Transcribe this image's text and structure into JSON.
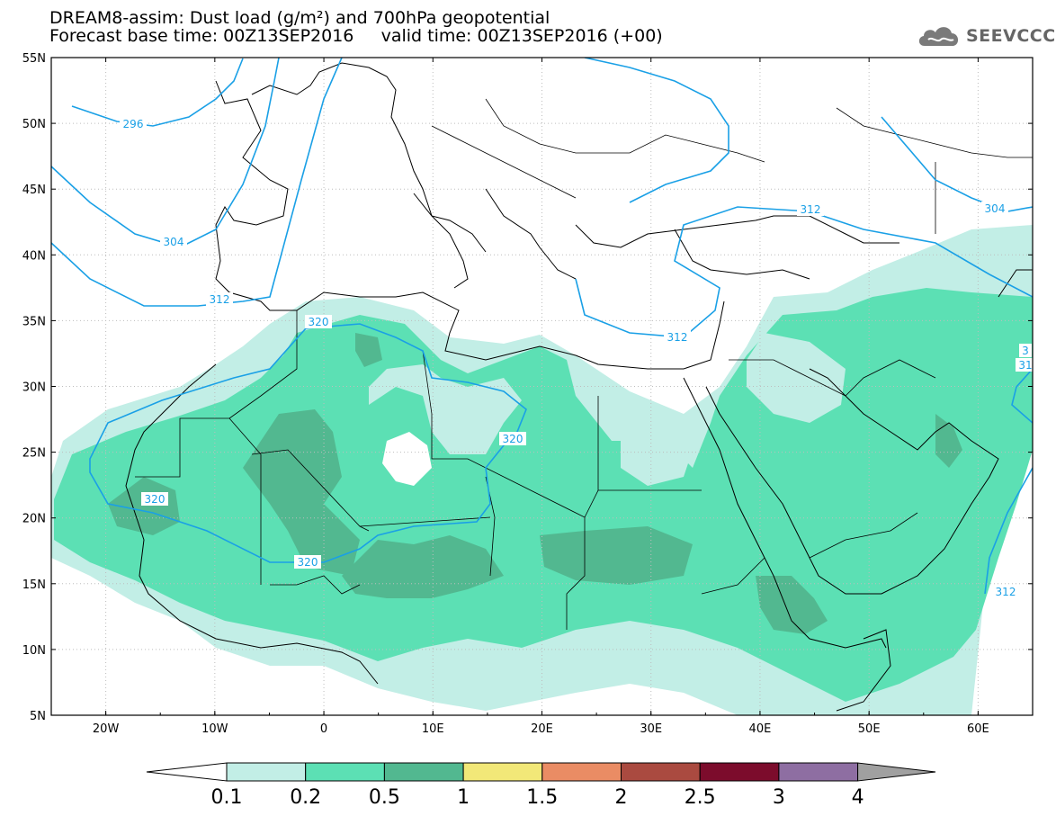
{
  "title": {
    "line1": "DREAM8-assim: Dust load (g/m²) and 700hPa geopotential",
    "line2": "Forecast base time: 00Z13SEP2016     valid time: 00Z13SEP2016 (+00)"
  },
  "logo": {
    "text": "SEEVCCC",
    "icon": "cloud-icon"
  },
  "axes": {
    "lat_labels": [
      "55N",
      "50N",
      "45N",
      "40N",
      "35N",
      "30N",
      "25N",
      "20N",
      "15N",
      "10N",
      "5N"
    ],
    "lon_labels": [
      "20W",
      "10W",
      "0",
      "10E",
      "20E",
      "30E",
      "40E",
      "50E",
      "60E"
    ]
  },
  "contours": {
    "color": "#1aa0e6",
    "labels": [
      "296",
      "304",
      "312",
      "320",
      "320",
      "320",
      "320",
      "312",
      "312",
      "304",
      "312",
      "312",
      "31",
      "3"
    ]
  },
  "colorbar": {
    "colors": [
      "#c2eee6",
      "#5ce0b4",
      "#52b890",
      "#f2e878",
      "#ea8c64",
      "#aa4a40",
      "#7c0c2c",
      "#8e6ea2"
    ],
    "under_color": "#ffffff",
    "over_color": "#a0a0a0",
    "labels": [
      "0.1",
      "0.2",
      "0.5",
      "1",
      "1.5",
      "2",
      "2.5",
      "3",
      "4"
    ]
  }
}
